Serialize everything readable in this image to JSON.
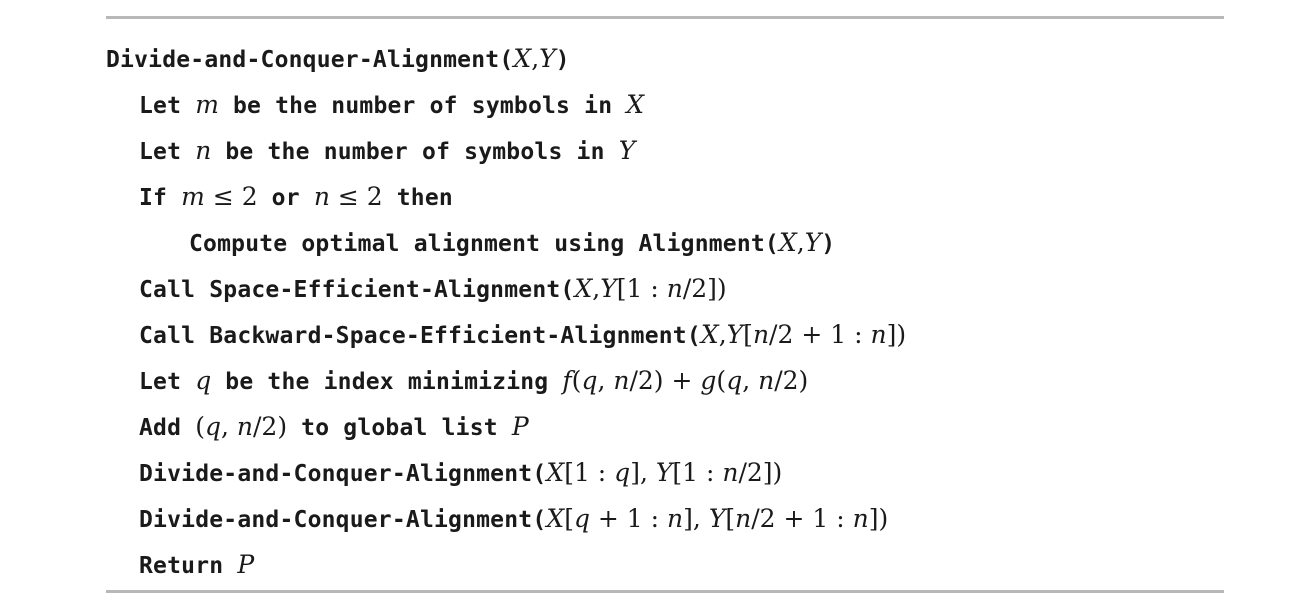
{
  "lines": [
    {
      "indent": 0,
      "segments": [
        {
          "type": "code",
          "text": "Divide-and-Conquer-Alignment("
        },
        {
          "type": "math",
          "parts": [
            {
              "t": "X",
              "i": true
            },
            {
              "t": ",",
              "i": false
            },
            {
              "t": "Y",
              "i": true
            }
          ]
        },
        {
          "type": "code",
          "text": ")"
        }
      ]
    },
    {
      "indent": 1,
      "segments": [
        {
          "type": "code",
          "text": "Let "
        },
        {
          "type": "math",
          "parts": [
            {
              "t": "m",
              "i": true
            }
          ]
        },
        {
          "type": "code",
          "text": " be the number of symbols in "
        },
        {
          "type": "math",
          "parts": [
            {
              "t": "X",
              "i": true
            }
          ]
        }
      ]
    },
    {
      "indent": 1,
      "segments": [
        {
          "type": "code",
          "text": "Let "
        },
        {
          "type": "math",
          "parts": [
            {
              "t": "n",
              "i": true
            }
          ]
        },
        {
          "type": "code",
          "text": " be the number of symbols in "
        },
        {
          "type": "math",
          "parts": [
            {
              "t": "Y",
              "i": true
            }
          ]
        }
      ]
    },
    {
      "indent": 1,
      "segments": [
        {
          "type": "code",
          "text": "If "
        },
        {
          "type": "math",
          "parts": [
            {
              "t": "m",
              "i": true
            },
            {
              "t": " ≤ 2",
              "i": false
            }
          ]
        },
        {
          "type": "code",
          "text": " or "
        },
        {
          "type": "math",
          "parts": [
            {
              "t": "n",
              "i": true
            },
            {
              "t": " ≤ 2",
              "i": false
            }
          ]
        },
        {
          "type": "code",
          "text": " then"
        }
      ]
    },
    {
      "indent": 2,
      "segments": [
        {
          "type": "code",
          "text": "Compute optimal alignment using Alignment("
        },
        {
          "type": "math",
          "parts": [
            {
              "t": "X",
              "i": true
            },
            {
              "t": ",",
              "i": false
            },
            {
              "t": "Y",
              "i": true
            }
          ]
        },
        {
          "type": "code",
          "text": ")"
        }
      ]
    },
    {
      "indent": 1,
      "segments": [
        {
          "type": "code",
          "text": "Call Space-Efficient-Alignment("
        },
        {
          "type": "math",
          "parts": [
            {
              "t": "X",
              "i": true
            },
            {
              "t": ",",
              "i": false
            },
            {
              "t": "Y",
              "i": true
            },
            {
              "t": "[1 : ",
              "i": false
            },
            {
              "t": "n",
              "i": true
            },
            {
              "t": "/2])",
              "i": false
            }
          ]
        }
      ]
    },
    {
      "indent": 1,
      "segments": [
        {
          "type": "code",
          "text": "Call Backward-Space-Efficient-Alignment("
        },
        {
          "type": "math",
          "parts": [
            {
              "t": "X",
              "i": true
            },
            {
              "t": ",",
              "i": false
            },
            {
              "t": "Y",
              "i": true
            },
            {
              "t": "[",
              "i": false
            },
            {
              "t": "n",
              "i": true
            },
            {
              "t": "/2 + 1 : ",
              "i": false
            },
            {
              "t": "n",
              "i": true
            },
            {
              "t": "])",
              "i": false
            }
          ]
        }
      ]
    },
    {
      "indent": 1,
      "segments": [
        {
          "type": "code",
          "text": "Let "
        },
        {
          "type": "math",
          "parts": [
            {
              "t": "q",
              "i": true
            }
          ]
        },
        {
          "type": "code",
          "text": " be the index minimizing "
        },
        {
          "type": "math",
          "parts": [
            {
              "t": "f",
              "i": true
            },
            {
              "t": "(",
              "i": false
            },
            {
              "t": "q",
              "i": true
            },
            {
              "t": ", ",
              "i": false
            },
            {
              "t": "n",
              "i": true
            },
            {
              "t": "/2) + ",
              "i": false
            },
            {
              "t": "g",
              "i": true
            },
            {
              "t": "(",
              "i": false
            },
            {
              "t": "q",
              "i": true
            },
            {
              "t": ", ",
              "i": false
            },
            {
              "t": "n",
              "i": true
            },
            {
              "t": "/2)",
              "i": false
            }
          ]
        }
      ]
    },
    {
      "indent": 1,
      "segments": [
        {
          "type": "code",
          "text": "Add "
        },
        {
          "type": "math",
          "parts": [
            {
              "t": "(",
              "i": false
            },
            {
              "t": "q",
              "i": true
            },
            {
              "t": ", ",
              "i": false
            },
            {
              "t": "n",
              "i": true
            },
            {
              "t": "/2)",
              "i": false
            }
          ]
        },
        {
          "type": "code",
          "text": " to global list "
        },
        {
          "type": "math",
          "parts": [
            {
              "t": "P",
              "i": true
            }
          ]
        }
      ]
    },
    {
      "indent": 1,
      "segments": [
        {
          "type": "code",
          "text": "Divide-and-Conquer-Alignment("
        },
        {
          "type": "math",
          "parts": [
            {
              "t": "X",
              "i": true
            },
            {
              "t": "[1 : ",
              "i": false
            },
            {
              "t": "q",
              "i": true
            },
            {
              "t": "], ",
              "i": false
            },
            {
              "t": "Y",
              "i": true
            },
            {
              "t": "[1 : ",
              "i": false
            },
            {
              "t": "n",
              "i": true
            },
            {
              "t": "/2])",
              "i": false
            }
          ]
        }
      ]
    },
    {
      "indent": 1,
      "segments": [
        {
          "type": "code",
          "text": "Divide-and-Conquer-Alignment("
        },
        {
          "type": "math",
          "parts": [
            {
              "t": "X",
              "i": true
            },
            {
              "t": "[",
              "i": false
            },
            {
              "t": "q",
              "i": true
            },
            {
              "t": " + 1 : ",
              "i": false
            },
            {
              "t": "n",
              "i": true
            },
            {
              "t": "], ",
              "i": false
            },
            {
              "t": "Y",
              "i": true
            },
            {
              "t": "[",
              "i": false
            },
            {
              "t": "n",
              "i": true
            },
            {
              "t": "/2 + 1 : ",
              "i": false
            },
            {
              "t": "n",
              "i": true
            },
            {
              "t": "])",
              "i": false
            }
          ]
        }
      ]
    },
    {
      "indent": 1,
      "segments": [
        {
          "type": "code",
          "text": "Return "
        },
        {
          "type": "math",
          "parts": [
            {
              "t": "P",
              "i": true
            }
          ]
        }
      ]
    }
  ]
}
